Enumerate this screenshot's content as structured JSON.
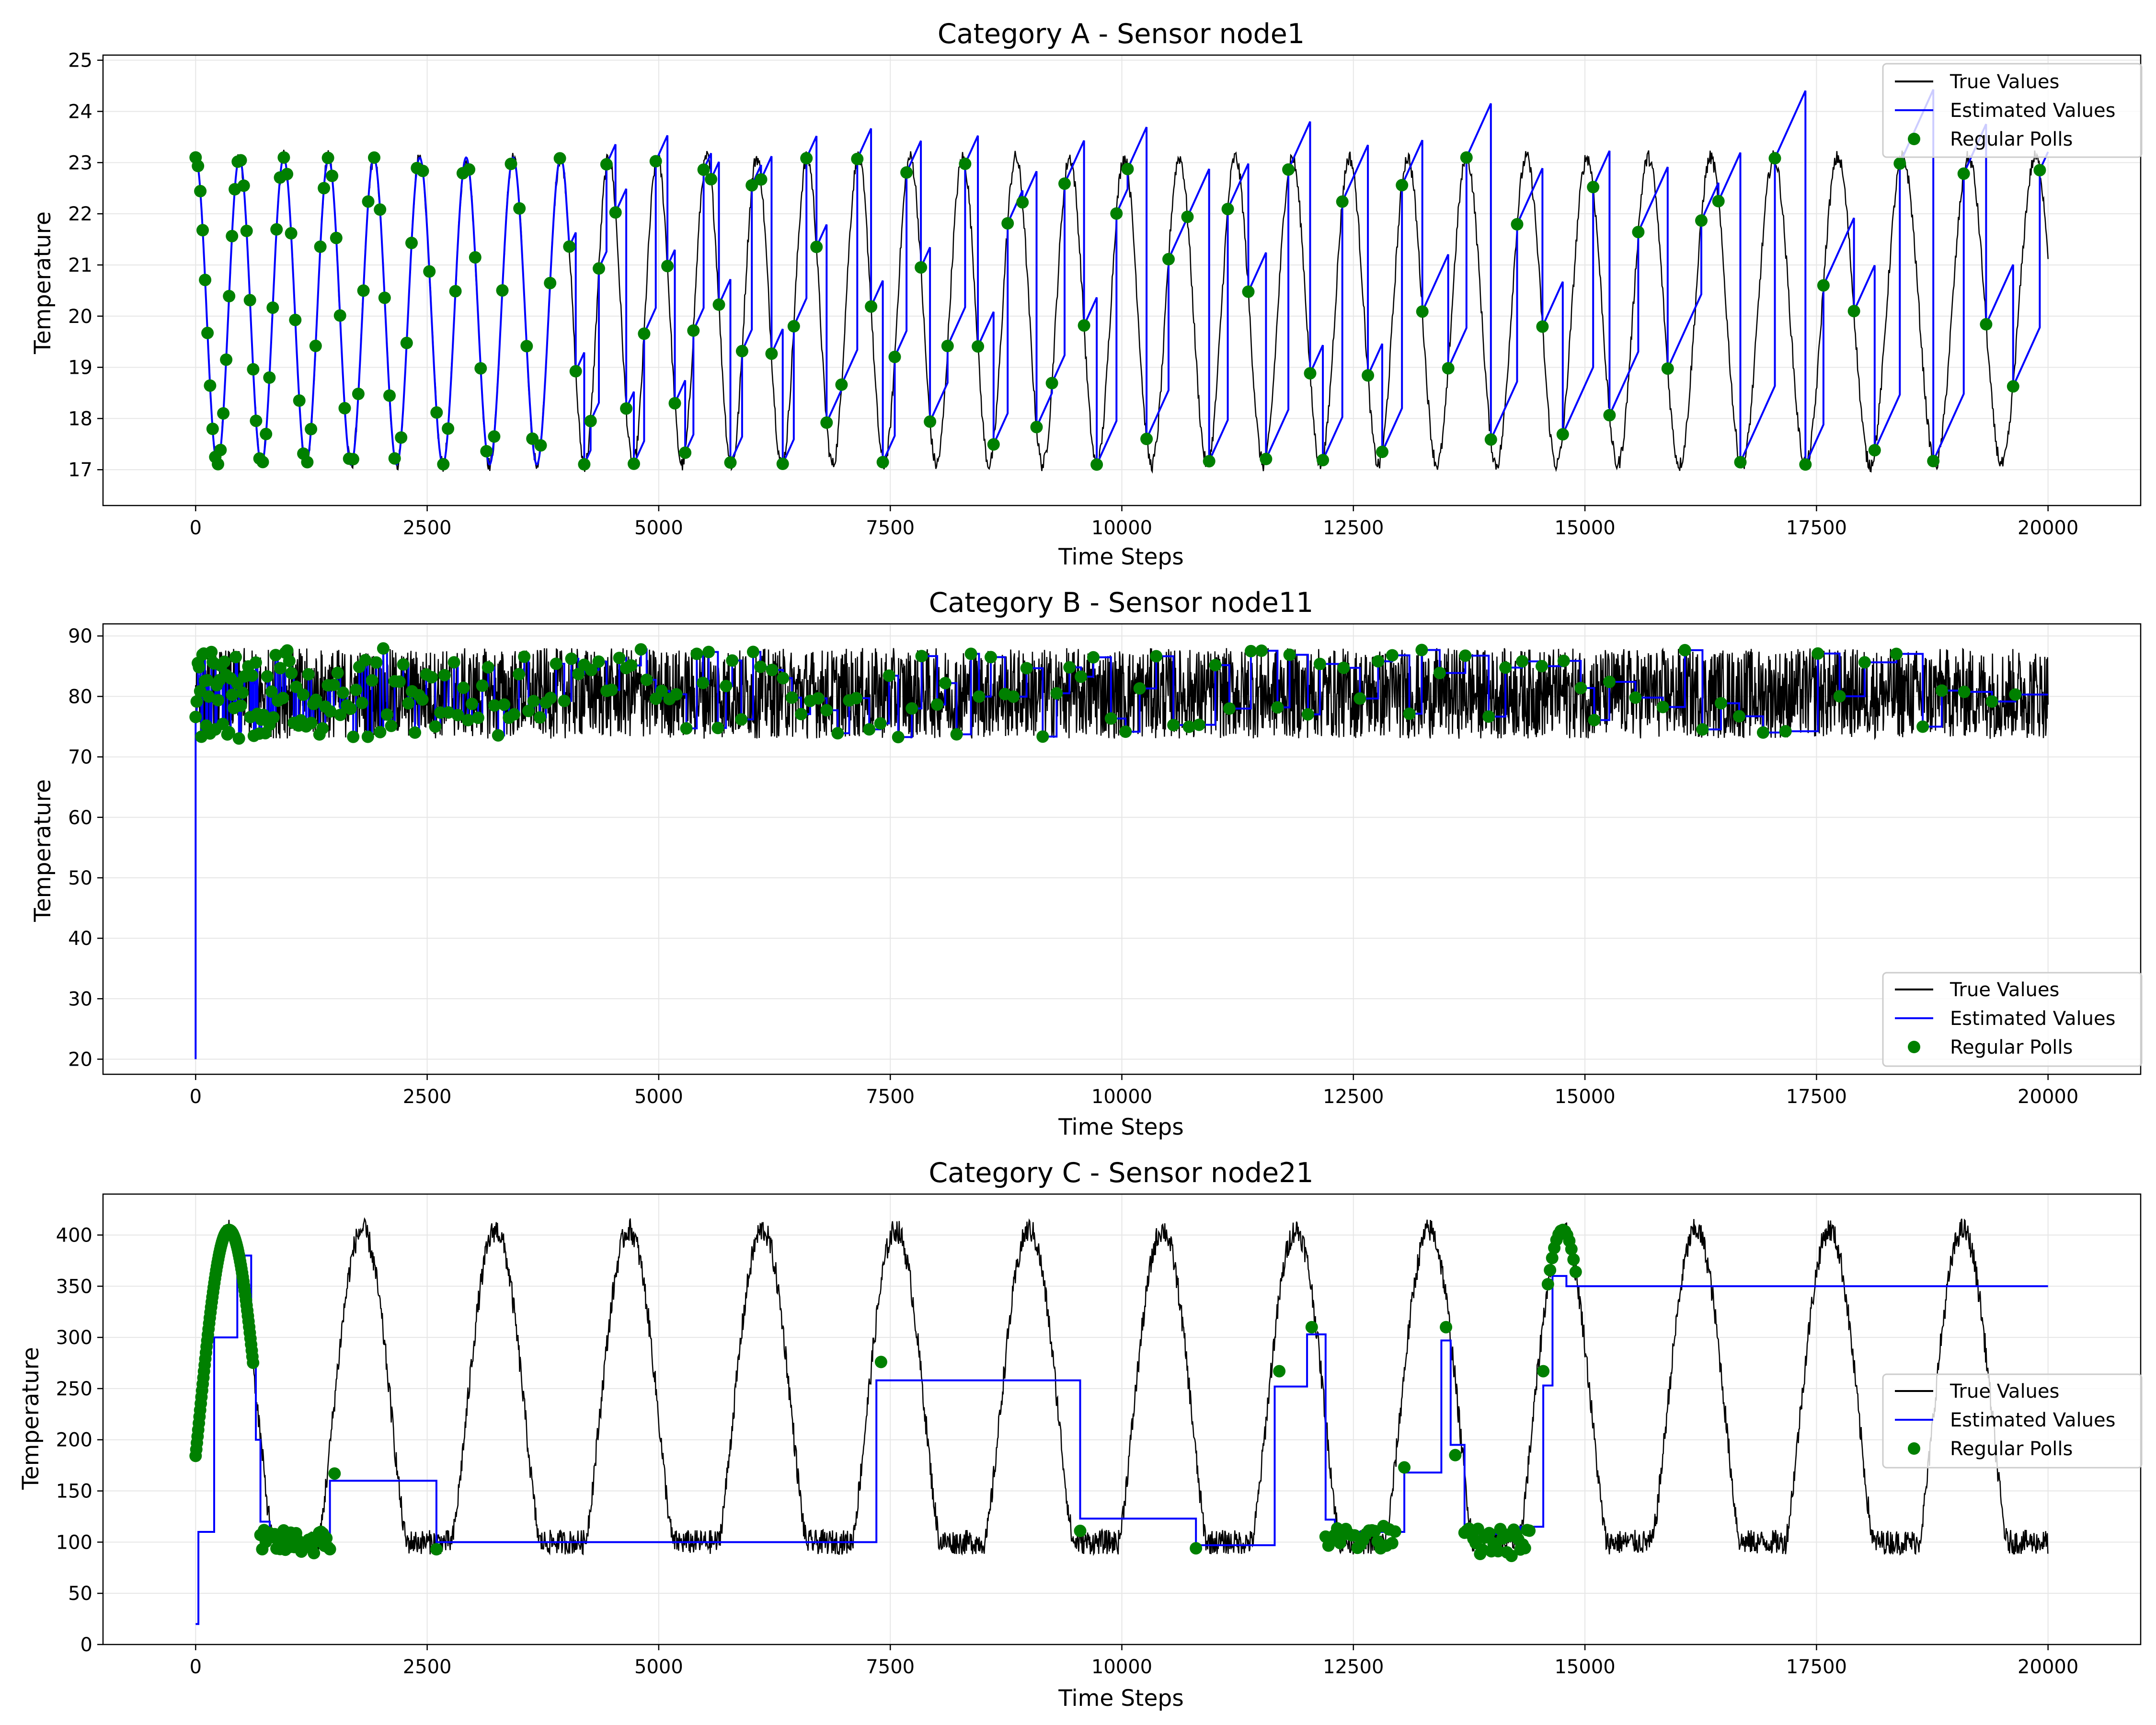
{
  "chart_data": [
    {
      "type": "line",
      "title": "Category A - Sensor node1",
      "xlabel": "Time Steps",
      "ylabel": "Temperature",
      "xlim": [
        -1000,
        21000
      ],
      "ylim": [
        16.3,
        25.1
      ],
      "xticks": [
        0,
        2500,
        5000,
        7500,
        10000,
        12500,
        15000,
        17500,
        20000
      ],
      "yticks": [
        17,
        18,
        19,
        20,
        21,
        22,
        23,
        24,
        25
      ],
      "grid": true,
      "legend_position": "top-right",
      "series": [
        {
          "name": "True Values",
          "kind": "line",
          "color": "#000000"
        },
        {
          "name": "Estimated Values",
          "kind": "line",
          "color": "#0000ff"
        },
        {
          "name": "Regular Polls",
          "kind": "scatter",
          "color": "#008000"
        }
      ],
      "signal": {
        "model": "sine",
        "mean": 20.1,
        "amplitude": 3.0,
        "start_period": 470,
        "end_period": 700,
        "noise": 0.15
      },
      "estimated": {
        "mode": "sawtooth",
        "true_until": 4000
      },
      "polls": {
        "interval_start": 25,
        "interval_end": 330
      },
      "x": [
        0,
        2500,
        5000,
        7500,
        10000,
        12500,
        15000,
        17500,
        20000
      ]
    },
    {
      "type": "line",
      "title": "Category B - Sensor node11",
      "xlabel": "Time Steps",
      "ylabel": "Temperature",
      "xlim": [
        -1000,
        21000
      ],
      "ylim": [
        17.5,
        92
      ],
      "xticks": [
        0,
        2500,
        5000,
        7500,
        10000,
        12500,
        15000,
        17500,
        20000
      ],
      "yticks": [
        20,
        30,
        40,
        50,
        60,
        70,
        80,
        90
      ],
      "grid": true,
      "legend_position": "bottom-right",
      "series": [
        {
          "name": "True Values",
          "kind": "line",
          "color": "#000000"
        },
        {
          "name": "Estimated Values",
          "kind": "line",
          "color": "#0000ff"
        },
        {
          "name": "Regular Polls",
          "kind": "scatter",
          "color": "#008000"
        }
      ],
      "signal": {
        "model": "noise",
        "low": 73,
        "high": 88
      },
      "estimated": {
        "mode": "steps",
        "start": 20
      },
      "polls": {
        "interval_start": 12,
        "interval_end": 300
      },
      "x": [
        0,
        2500,
        5000,
        7500,
        10000,
        12500,
        15000,
        17500,
        20000
      ]
    },
    {
      "type": "line",
      "title": "Category C - Sensor node21",
      "xlabel": "Time Steps",
      "ylabel": "Temperature",
      "xlim": [
        -1000,
        21000
      ],
      "ylim": [
        0,
        440
      ],
      "xticks": [
        0,
        2500,
        5000,
        7500,
        10000,
        12500,
        15000,
        17500,
        20000
      ],
      "yticks": [
        0,
        50,
        100,
        150,
        200,
        250,
        300,
        350,
        400
      ],
      "grid": true,
      "legend_position": "center-right",
      "series": [
        {
          "name": "True Values",
          "kind": "line",
          "color": "#000000"
        },
        {
          "name": "Estimated Values",
          "kind": "line",
          "color": "#0000ff"
        },
        {
          "name": "Regular Polls",
          "kind": "scatter",
          "color": "#008000"
        }
      ],
      "signal": {
        "model": "pulses",
        "baseline": 100,
        "peak": 405,
        "period": 1440,
        "first_peak": 360,
        "noise": 12
      },
      "estimated": {
        "mode": "steps",
        "points": [
          [
            0,
            20
          ],
          [
            30,
            110
          ],
          [
            200,
            300
          ],
          [
            450,
            380
          ],
          [
            600,
            290
          ],
          [
            650,
            200
          ],
          [
            700,
            120
          ],
          [
            800,
            100
          ],
          [
            1450,
            160
          ],
          [
            2600,
            100
          ],
          [
            7350,
            258
          ],
          [
            9550,
            123
          ],
          [
            10800,
            97
          ],
          [
            11650,
            252
          ],
          [
            12000,
            303
          ],
          [
            12200,
            122
          ],
          [
            12300,
            110
          ],
          [
            13050,
            168
          ],
          [
            13450,
            297
          ],
          [
            13550,
            195
          ],
          [
            13700,
            108
          ],
          [
            14300,
            115
          ],
          [
            14550,
            253
          ],
          [
            14650,
            360
          ],
          [
            14800,
            350
          ],
          [
            20000,
            350
          ]
        ]
      },
      "polls": {
        "clusters": [
          {
            "from": 0,
            "to": 620,
            "count": 90,
            "follow": true
          },
          {
            "from": 700,
            "to": 1450,
            "count": 40,
            "value": 100,
            "spread": 12
          },
          {
            "from": 12200,
            "to": 12950,
            "count": 25,
            "value": 105,
            "spread": 12
          },
          {
            "from": 13700,
            "to": 14400,
            "count": 30,
            "value": 100,
            "spread": 14
          },
          {
            "from": 14600,
            "to": 14900,
            "count": 14,
            "follow": true
          }
        ],
        "singles": [
          [
            1500,
            167
          ],
          [
            2600,
            93
          ],
          [
            7400,
            276
          ],
          [
            9550,
            111
          ],
          [
            10800,
            94
          ],
          [
            11700,
            267
          ],
          [
            12050,
            310
          ],
          [
            13050,
            173
          ],
          [
            13500,
            310
          ],
          [
            13600,
            185
          ],
          [
            14550,
            267
          ]
        ]
      },
      "x": [
        0,
        2500,
        5000,
        7500,
        10000,
        12500,
        15000,
        17500,
        20000
      ]
    }
  ]
}
